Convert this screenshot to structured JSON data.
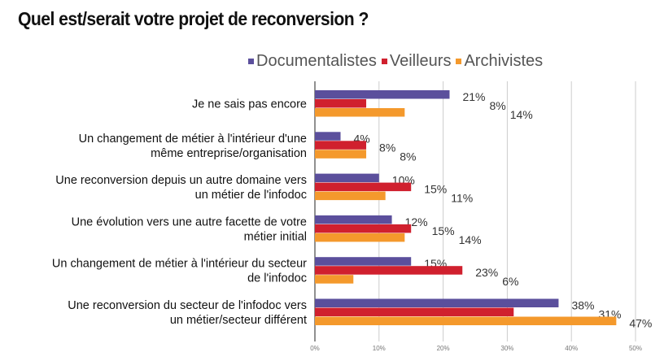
{
  "chart_data": {
    "type": "bar",
    "orientation": "horizontal",
    "title": "Quel est/serait votre projet de reconversion ?",
    "categories": [
      [
        "Je ne sais pas encore"
      ],
      [
        "Un changement de métier à l'intérieur d'une",
        "même entreprise/organisation"
      ],
      [
        "Une reconversion depuis un autre domaine vers",
        "un métier de l'infodoc"
      ],
      [
        "Une évolution vers une autre facette de votre",
        "métier initial"
      ],
      [
        "Un changement de métier à l'intérieur du secteur",
        "de l'infodoc"
      ],
      [
        "Une reconversion du secteur de l'infodoc vers",
        "un métier/secteur différent"
      ]
    ],
    "series": [
      {
        "name": "Documentalistes",
        "color": "#5b4f9c",
        "values": [
          21,
          4,
          10,
          12,
          15,
          38
        ]
      },
      {
        "name": "Veilleurs",
        "color": "#d0202e",
        "values": [
          8,
          8,
          15,
          15,
          23,
          31
        ]
      },
      {
        "name": "Archivistes",
        "color": "#f4992c",
        "values": [
          14,
          8,
          11,
          14,
          6,
          47
        ]
      }
    ],
    "xlim": [
      0,
      50
    ],
    "xticks": [
      "0%",
      "10%",
      "20%",
      "30%",
      "40%",
      "50%"
    ],
    "value_suffix": "%",
    "grid": true,
    "legend": "top-right"
  }
}
